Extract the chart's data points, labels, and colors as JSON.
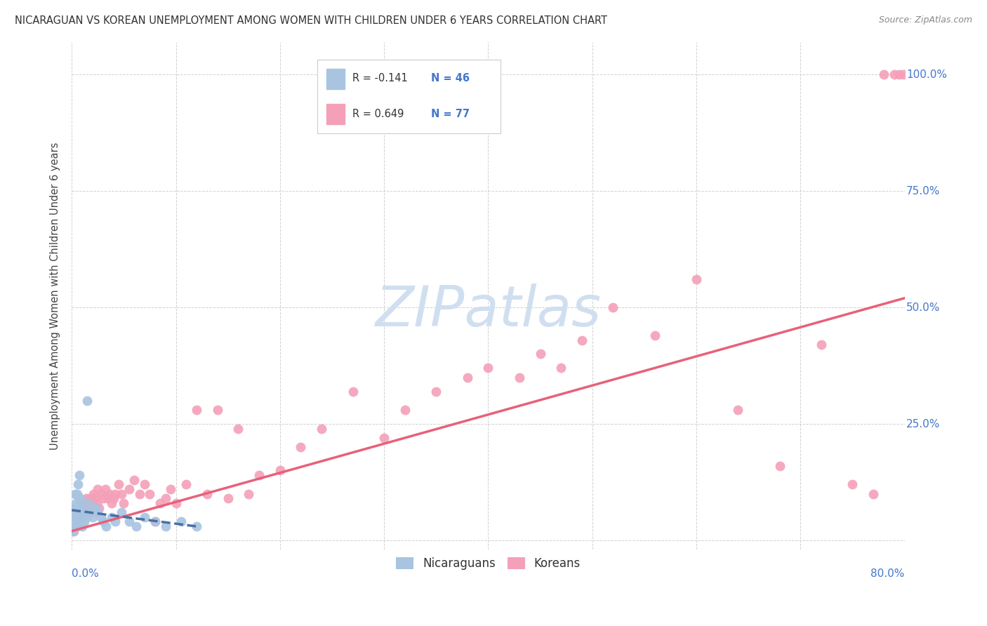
{
  "title": "NICARAGUAN VS KOREAN UNEMPLOYMENT AMONG WOMEN WITH CHILDREN UNDER 6 YEARS CORRELATION CHART",
  "source": "Source: ZipAtlas.com",
  "ylabel": "Unemployment Among Women with Children Under 6 years",
  "legend_label1": "Nicaraguans",
  "legend_label2": "Koreans",
  "nic_color": "#a8c4e0",
  "kor_color": "#f4a0b8",
  "nic_line_color": "#4a6fa5",
  "kor_line_color": "#e8607a",
  "bg_color": "#ffffff",
  "watermark_color": "#d0dff0",
  "xlim": [
    0.0,
    0.8
  ],
  "ylim": [
    -0.02,
    1.07
  ],
  "ytick_values": [
    0.0,
    0.25,
    0.5,
    0.75,
    1.0
  ],
  "ytick_labels": [
    "",
    "25.0%",
    "50.0%",
    "75.0%",
    "100.0%"
  ],
  "nic_x": [
    0.001,
    0.002,
    0.002,
    0.003,
    0.003,
    0.003,
    0.004,
    0.004,
    0.005,
    0.005,
    0.005,
    0.006,
    0.006,
    0.006,
    0.007,
    0.007,
    0.007,
    0.008,
    0.008,
    0.009,
    0.009,
    0.01,
    0.01,
    0.011,
    0.012,
    0.013,
    0.014,
    0.015,
    0.016,
    0.018,
    0.02,
    0.023,
    0.025,
    0.028,
    0.03,
    0.033,
    0.038,
    0.042,
    0.048,
    0.055,
    0.062,
    0.07,
    0.08,
    0.09,
    0.105,
    0.12
  ],
  "nic_y": [
    0.02,
    0.04,
    0.07,
    0.03,
    0.06,
    0.1,
    0.05,
    0.08,
    0.03,
    0.06,
    0.1,
    0.04,
    0.07,
    0.12,
    0.04,
    0.08,
    0.14,
    0.05,
    0.09,
    0.04,
    0.07,
    0.03,
    0.06,
    0.05,
    0.04,
    0.06,
    0.05,
    0.3,
    0.08,
    0.06,
    0.05,
    0.07,
    0.06,
    0.05,
    0.04,
    0.03,
    0.05,
    0.04,
    0.06,
    0.04,
    0.03,
    0.05,
    0.04,
    0.03,
    0.04,
    0.03
  ],
  "kor_x": [
    0.002,
    0.004,
    0.005,
    0.006,
    0.007,
    0.008,
    0.009,
    0.01,
    0.011,
    0.012,
    0.013,
    0.014,
    0.015,
    0.016,
    0.017,
    0.018,
    0.019,
    0.02,
    0.021,
    0.022,
    0.024,
    0.025,
    0.026,
    0.028,
    0.03,
    0.032,
    0.034,
    0.036,
    0.038,
    0.04,
    0.042,
    0.045,
    0.048,
    0.05,
    0.055,
    0.06,
    0.065,
    0.07,
    0.075,
    0.08,
    0.085,
    0.09,
    0.095,
    0.1,
    0.11,
    0.12,
    0.13,
    0.14,
    0.15,
    0.16,
    0.17,
    0.18,
    0.2,
    0.22,
    0.24,
    0.27,
    0.3,
    0.32,
    0.35,
    0.38,
    0.4,
    0.43,
    0.45,
    0.47,
    0.49,
    0.52,
    0.56,
    0.6,
    0.64,
    0.68,
    0.72,
    0.75,
    0.77,
    0.78,
    0.79,
    0.795,
    0.799
  ],
  "kor_y": [
    0.02,
    0.03,
    0.05,
    0.04,
    0.06,
    0.05,
    0.07,
    0.06,
    0.08,
    0.06,
    0.07,
    0.09,
    0.07,
    0.08,
    0.06,
    0.09,
    0.07,
    0.08,
    0.1,
    0.09,
    0.08,
    0.11,
    0.07,
    0.1,
    0.09,
    0.11,
    0.09,
    0.1,
    0.08,
    0.09,
    0.1,
    0.12,
    0.1,
    0.08,
    0.11,
    0.13,
    0.1,
    0.12,
    0.1,
    0.04,
    0.08,
    0.09,
    0.11,
    0.08,
    0.12,
    0.28,
    0.1,
    0.28,
    0.09,
    0.24,
    0.1,
    0.14,
    0.15,
    0.2,
    0.24,
    0.32,
    0.22,
    0.28,
    0.32,
    0.35,
    0.37,
    0.35,
    0.4,
    0.37,
    0.43,
    0.5,
    0.44,
    0.56,
    0.28,
    0.16,
    0.42,
    0.12,
    0.1,
    1.0,
    1.0,
    1.0,
    1.0
  ],
  "kor_trend_x": [
    0.0,
    0.8
  ],
  "kor_trend_y": [
    0.02,
    0.52
  ],
  "nic_trend_x": [
    0.0,
    0.12
  ],
  "nic_trend_y": [
    0.065,
    0.03
  ]
}
